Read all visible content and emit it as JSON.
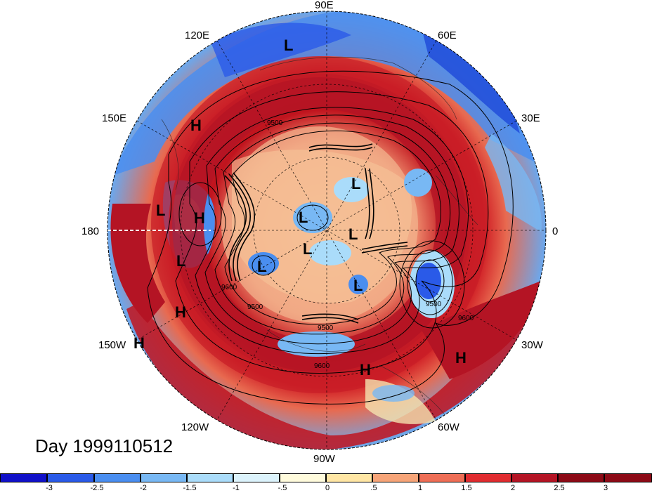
{
  "map": {
    "longitude_labels": [
      {
        "text": "90E",
        "name": "lon-label-90e"
      },
      {
        "text": "60E",
        "name": "lon-label-60e"
      },
      {
        "text": "30E",
        "name": "lon-label-30e"
      },
      {
        "text": "0",
        "name": "lon-label-0"
      },
      {
        "text": "30W",
        "name": "lon-label-30w"
      },
      {
        "text": "60W",
        "name": "lon-label-60w"
      },
      {
        "text": "90W",
        "name": "lon-label-90w"
      },
      {
        "text": "120W",
        "name": "lon-label-120w"
      },
      {
        "text": "150W",
        "name": "lon-label-150w"
      },
      {
        "text": "180",
        "name": "lon-label-180"
      },
      {
        "text": "150E",
        "name": "lon-label-150e"
      },
      {
        "text": "120E",
        "name": "lon-label-120e"
      }
    ],
    "pressure_markers": [
      "L",
      "H",
      "L",
      "H",
      "L",
      "L",
      "L",
      "L",
      "L",
      "L",
      "L",
      "H",
      "H",
      "H",
      "H"
    ],
    "contour_labels": [
      "9500",
      "9500",
      "9600",
      "9600",
      "9500",
      "9600",
      "9500"
    ]
  },
  "day_label": "Day 1999110512",
  "colorbar": {
    "colors": [
      "#1010c8",
      "#2a5ae8",
      "#4a8ef0",
      "#78b8f4",
      "#aadcfa",
      "#dcf3fc",
      "#fffbdc",
      "#ffe6a4",
      "#f6a478",
      "#ee6e56",
      "#e02c30",
      "#b41424",
      "#8c0a16"
    ],
    "ticks": [
      "-3",
      "-2.5",
      "-2",
      "-1.5",
      "-1",
      "-.5",
      "0",
      ".5",
      "1",
      "1.5",
      "2",
      "2.5",
      "3"
    ]
  }
}
